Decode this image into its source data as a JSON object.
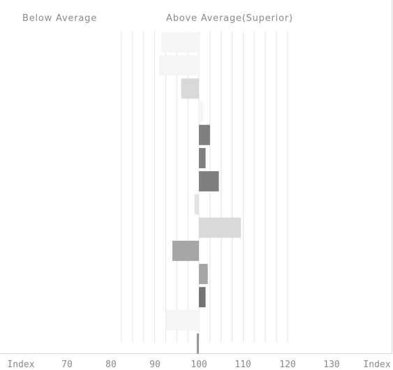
{
  "header": {
    "below_label": "Below Average",
    "above_label": "Above Average(Superior)"
  },
  "chart_data": {
    "type": "bar",
    "orientation": "horizontal",
    "baseline": 100,
    "xlim": [
      65,
      140
    ],
    "x_ticks": [
      "Index",
      "70",
      "80",
      "90",
      "100",
      "110",
      "120",
      "130",
      "Index"
    ],
    "grid": true,
    "values": [
      83,
      82,
      92,
      102,
      105,
      103,
      109,
      98,
      119,
      88,
      104,
      103,
      85,
      99
    ],
    "colors": [
      "#f5f5f5",
      "#f5f5f5",
      "#d9d9d9",
      "#f5f5f5",
      "#7f7f7f",
      "#7f7f7f",
      "#7f7f7f",
      "#e3e3e3",
      "#d9d9d9",
      "#a6a6a6",
      "#a6a6a6",
      "#737373",
      "#f5f5f5",
      "#999999"
    ]
  }
}
